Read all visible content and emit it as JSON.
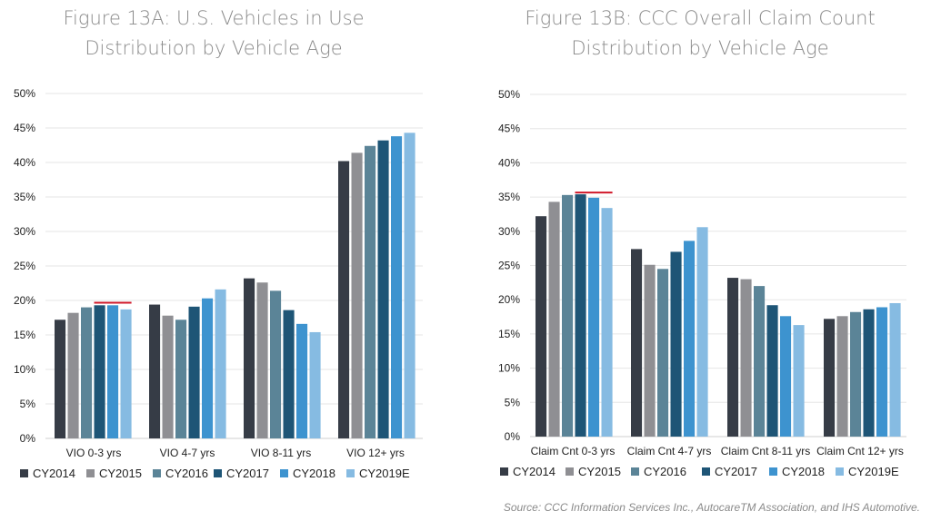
{
  "colors": {
    "CY2014": "#363c46",
    "CY2015": "#8f8f93",
    "CY2016": "#5b8497",
    "CY2017": "#1e5576",
    "CY2018": "#3d93cf",
    "CY2019E": "#86bbe2",
    "reference_line": "#d0182a",
    "grid": "#e6e6e6"
  },
  "source": "Source: CCC Information Services Inc., AutocareTM Association, and IHS Automotive.",
  "chart_data": [
    {
      "type": "bar",
      "title_line1": "Figure 13A: U.S. Vehicles in Use",
      "title_line2": "Distribution by Vehicle Age",
      "categories": [
        "VIO 0-3 yrs",
        "VIO 4-7 yrs",
        "VIO 8-11 yrs",
        "VIO 12+ yrs"
      ],
      "ylim": [
        0,
        50
      ],
      "yticks": [
        "0%",
        "5%",
        "10%",
        "15%",
        "20%",
        "25%",
        "30%",
        "35%",
        "40%",
        "45%",
        "50%"
      ],
      "grid": true,
      "legend_position": "bottom",
      "series": [
        {
          "name": "CY2014",
          "values": [
            17.2,
            19.4,
            23.2,
            40.2
          ]
        },
        {
          "name": "CY2015",
          "values": [
            18.2,
            17.8,
            22.6,
            41.4
          ]
        },
        {
          "name": "CY2016",
          "values": [
            19.0,
            17.2,
            21.4,
            42.4
          ]
        },
        {
          "name": "CY2017",
          "values": [
            19.3,
            19.1,
            18.6,
            43.2
          ]
        },
        {
          "name": "CY2018",
          "values": [
            19.3,
            20.3,
            16.6,
            43.8
          ]
        },
        {
          "name": "CY2019E",
          "values": [
            18.7,
            21.6,
            15.4,
            44.3
          ]
        }
      ],
      "reference_line": {
        "category": "VIO 0-3 yrs",
        "value": 19.4
      }
    },
    {
      "type": "bar",
      "title_line1": "Figure 13B: CCC Overall Claim Count",
      "title_line2": "Distribution by Vehicle Age",
      "categories": [
        "Claim Cnt 0-3 yrs",
        "Claim Cnt 4-7 yrs",
        "Claim Cnt 8-11 yrs",
        "Claim Cnt 12+ yrs"
      ],
      "ylim": [
        0,
        50
      ],
      "yticks": [
        "0%",
        "5%",
        "10%",
        "15%",
        "20%",
        "25%",
        "30%",
        "35%",
        "40%",
        "45%",
        "50%"
      ],
      "grid": true,
      "legend_position": "bottom",
      "series": [
        {
          "name": "CY2014",
          "values": [
            32.2,
            27.4,
            23.2,
            17.2
          ]
        },
        {
          "name": "CY2015",
          "values": [
            34.3,
            25.1,
            23.0,
            17.6
          ]
        },
        {
          "name": "CY2016",
          "values": [
            35.3,
            24.5,
            22.0,
            18.2
          ]
        },
        {
          "name": "CY2017",
          "values": [
            35.4,
            27.0,
            19.2,
            18.6
          ]
        },
        {
          "name": "CY2018",
          "values": [
            34.9,
            28.6,
            17.6,
            18.9
          ]
        },
        {
          "name": "CY2019E",
          "values": [
            33.4,
            30.6,
            16.3,
            19.5
          ]
        }
      ],
      "reference_line": {
        "category": "Claim Cnt 0-3 yrs",
        "value": 35.4
      }
    }
  ]
}
